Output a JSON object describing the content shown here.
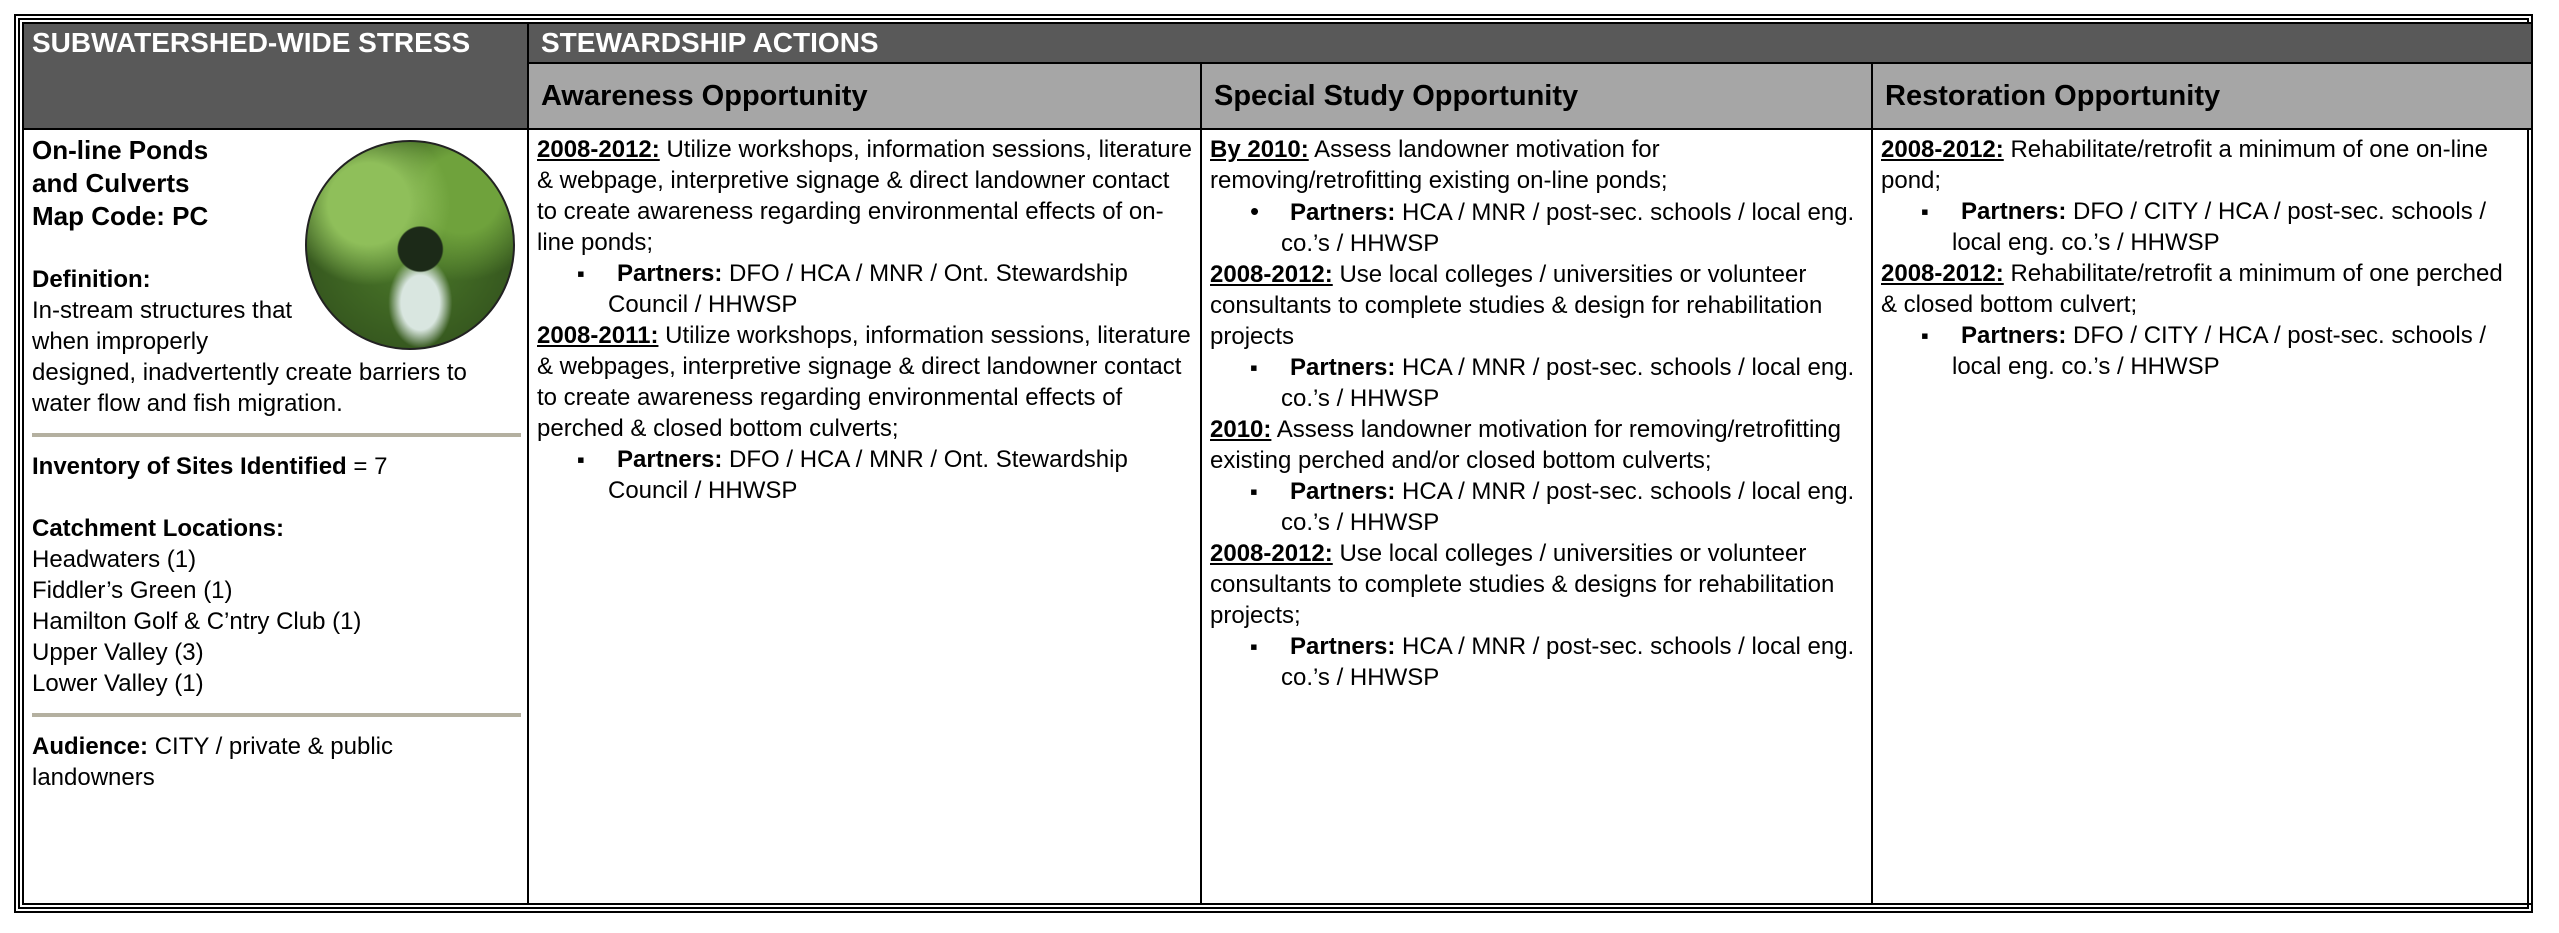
{
  "header": {
    "stress": "SUBWATERSHED-WIDE STRESS",
    "actions": "STEWARDSHIP ACTIONS",
    "columns": [
      "Awareness Opportunity",
      "Special Study Opportunity",
      "Restoration Opportunity"
    ]
  },
  "stress": {
    "title_lines": [
      "On-line Ponds",
      "and Culverts",
      "Map Code: PC"
    ],
    "definition_label": "Definition:",
    "definition": "In-stream structures that when improperly designed, inadvertently create barriers to water flow and fish migration.",
    "inventory_label": "Inventory of Sites Identified",
    "inventory_value": "= 7",
    "catchment_label": "Catchment Locations:",
    "catchments": [
      "Headwaters (1)",
      "Fiddler’s Green (1)",
      "Hamilton Golf & C’ntry Club (1)",
      "Upper Valley (3)",
      "Lower Valley (1)"
    ],
    "audience_label": "Audience:",
    "audience": "CITY / private & public landowners"
  },
  "actions": [
    [
      {
        "date": "2008-2012:",
        "text": "Utilize workshops, information sessions, literature & webpage, interpretive signage & direct landowner contact to create awareness regarding environmental effects of on-line ponds;",
        "partners_label": "Partners:",
        "partners": "DFO / HCA / MNR / Ont. Stewardship Council / HHWSP"
      },
      {
        "date": "2008-2011:",
        "text": "Utilize workshops, information sessions, literature & webpages, interpretive signage & direct landowner contact to create awareness regarding environmental effects of perched & closed bottom culverts;",
        "partners_label": "Partners:",
        "partners": "DFO / HCA / MNR / Ont. Stewardship Council / HHWSP"
      }
    ],
    [
      {
        "date": "By 2010:",
        "text": "Assess landowner motivation for removing/retrofitting existing on-line ponds;",
        "partners_label": "Partners:",
        "partners": "HCA / MNR / post-sec. schools / local eng. co.’s / HHWSP"
      },
      {
        "date": "2008-2012:",
        "text": "Use local colleges / universities or volunteer consultants to complete studies & design for rehabilitation projects",
        "partners_label": "Partners:",
        "partners": "HCA / MNR / post-sec. schools / local eng. co.’s / HHWSP"
      },
      {
        "date": "2010:",
        "text": "Assess landowner motivation for removing/retrofitting existing perched and/or closed bottom culverts;",
        "partners_label": "Partners:",
        "partners": "HCA / MNR / post-sec. schools / local eng. co.’s / HHWSP"
      },
      {
        "date": "2008-2012:",
        "text": "Use local colleges / universities or volunteer consultants to complete studies & designs for rehabilitation projects;",
        "partners_label": "Partners:",
        "partners": "HCA / MNR / post-sec. schools / local eng. co.’s / HHWSP"
      }
    ],
    [
      {
        "date": "2008-2012:",
        "text": "Rehabilitate/retrofit a minimum of one on-line pond;",
        "partners_label": "Partners:",
        "partners": "DFO / CITY / HCA / post-sec. schools / local eng. co.’s / HHWSP"
      },
      {
        "date": "2008-2012:",
        "text": "Rehabilitate/retrofit a minimum of one perched & closed bottom culvert;",
        "partners_label": "Partners:",
        "partners": "DFO / CITY / HCA / post-sec. schools / local eng. co.’s / HHWSP"
      }
    ]
  ]
}
